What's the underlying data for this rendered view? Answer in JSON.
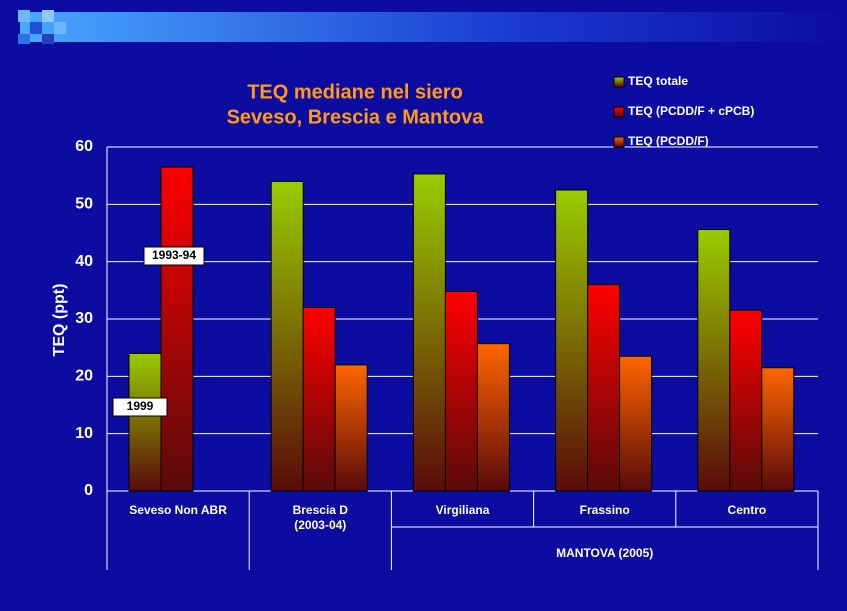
{
  "chart_data": {
    "type": "bar",
    "title": "TEQ mediane nel siero",
    "subtitle": "Seveso, Brescia e Mantova",
    "y_label": "TEQ (ppt)",
    "categories": [
      "Seveso Non ABR",
      "Brescia D\n(2003-04)",
      "Virgiliana",
      "Frassino",
      "Centro"
    ],
    "group_label": "MANTOVA (2005)",
    "series": [
      {
        "name": "TEQ totale",
        "color": "#99cc00",
        "values": [
          24,
          54,
          55.3,
          52.5,
          45.6
        ]
      },
      {
        "name": "TEQ (PCDD/F + cPCB)",
        "color": "#ff0000",
        "values": [
          56.5,
          32,
          34.8,
          36,
          31.5
        ]
      },
      {
        "name": "TEQ (PCDD/F)",
        "color": "#ff6600",
        "values": [
          null,
          22,
          25.7,
          23.5,
          21.5
        ]
      }
    ],
    "annotations": [
      "1993-94",
      "1999"
    ],
    "ylim": [
      0,
      60
    ],
    "yticks": [
      0,
      10,
      20,
      30,
      40,
      50,
      60
    ],
    "grid": true
  }
}
